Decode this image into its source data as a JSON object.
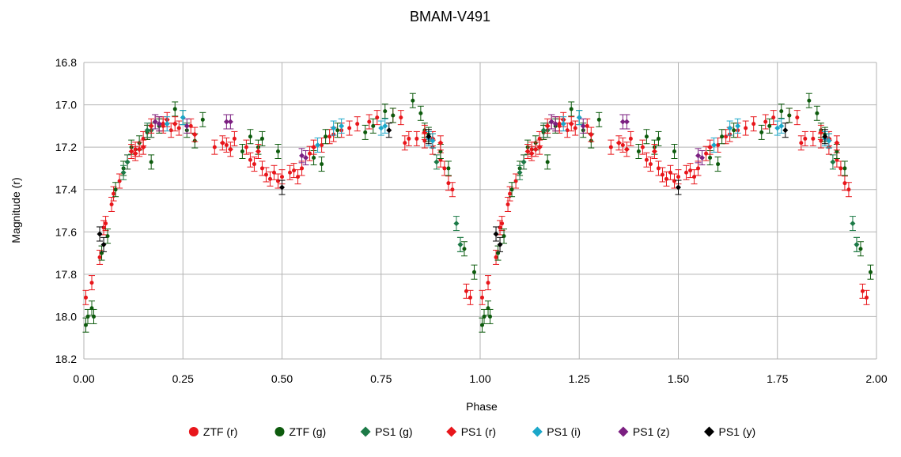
{
  "chart_data": {
    "type": "scatter",
    "title": "BMAM-V491",
    "xlabel": "Phase",
    "ylabel": "Magnitude (r)",
    "xlim": [
      0.0,
      2.0
    ],
    "ylim": [
      16.8,
      18.2
    ],
    "y_inverted": true,
    "grid": true,
    "legend_position": "bottom",
    "x_ticks": [
      "0.00",
      "0.25",
      "0.50",
      "0.75",
      "1.00",
      "1.25",
      "1.50",
      "1.75",
      "2.00"
    ],
    "x_tick_values": [
      0.0,
      0.25,
      0.5,
      0.75,
      1.0,
      1.25,
      1.5,
      1.75,
      2.0
    ],
    "y_ticks": [
      "16.8",
      "17.0",
      "17.2",
      "17.4",
      "17.6",
      "17.8",
      "18.0",
      "18.2"
    ],
    "y_tick_values": [
      16.8,
      17.0,
      17.2,
      17.4,
      17.6,
      17.8,
      18.0,
      18.2
    ],
    "series": [
      {
        "name": "ZTF (r)",
        "marker": "circle",
        "color": "#e8161b",
        "errcolor": "#e8161b",
        "points": [
          [
            0.005,
            17.91
          ],
          [
            0.02,
            17.84
          ],
          [
            0.04,
            17.72
          ],
          [
            0.05,
            17.58
          ],
          [
            0.055,
            17.56
          ],
          [
            0.07,
            17.47
          ],
          [
            0.075,
            17.42
          ],
          [
            0.09,
            17.36
          ],
          [
            0.11,
            17.27
          ],
          [
            0.13,
            17.21
          ],
          [
            0.15,
            17.16
          ],
          [
            0.16,
            17.13
          ],
          [
            0.17,
            17.12
          ],
          [
            0.19,
            17.09
          ],
          [
            0.2,
            17.1
          ],
          [
            0.22,
            17.12
          ],
          [
            0.24,
            17.11
          ],
          [
            0.27,
            17.1
          ],
          [
            0.33,
            17.2
          ],
          [
            0.36,
            17.19
          ],
          [
            0.38,
            17.16
          ],
          [
            0.41,
            17.2
          ],
          [
            0.42,
            17.26
          ],
          [
            0.43,
            17.28
          ],
          [
            0.45,
            17.3
          ],
          [
            0.46,
            17.33
          ],
          [
            0.47,
            17.35
          ],
          [
            0.48,
            17.32
          ],
          [
            0.49,
            17.36
          ],
          [
            0.5,
            17.34
          ],
          [
            0.52,
            17.32
          ],
          [
            0.53,
            17.31
          ],
          [
            0.54,
            17.34
          ],
          [
            0.55,
            17.3
          ],
          [
            0.57,
            17.23
          ],
          [
            0.6,
            17.19
          ],
          [
            0.62,
            17.15
          ],
          [
            0.63,
            17.14
          ],
          [
            0.65,
            17.12
          ],
          [
            0.67,
            17.11
          ],
          [
            0.69,
            17.09
          ],
          [
            0.72,
            17.08
          ],
          [
            0.74,
            17.06
          ],
          [
            0.78,
            17.05
          ],
          [
            0.8,
            17.06
          ],
          [
            0.81,
            17.18
          ],
          [
            0.82,
            17.16
          ],
          [
            0.84,
            17.16
          ],
          [
            0.86,
            17.17
          ],
          [
            0.88,
            17.2
          ],
          [
            0.9,
            17.26
          ],
          [
            0.91,
            17.3
          ],
          [
            0.92,
            17.37
          ],
          [
            0.93,
            17.4
          ],
          [
            0.965,
            17.88
          ],
          [
            0.975,
            17.91
          ]
        ]
      },
      {
        "name": "ZTF (g)",
        "marker": "circle",
        "color": "#0d5b0d",
        "errcolor": "#0d5b0d",
        "points": [
          [
            0.005,
            18.04
          ],
          [
            0.01,
            18.0
          ],
          [
            0.02,
            17.96
          ],
          [
            0.025,
            18.0
          ],
          [
            0.045,
            17.7
          ],
          [
            0.06,
            17.62
          ],
          [
            0.08,
            17.4
          ],
          [
            0.1,
            17.3
          ],
          [
            0.12,
            17.2
          ],
          [
            0.14,
            17.18
          ],
          [
            0.16,
            17.13
          ],
          [
            0.17,
            17.27
          ],
          [
            0.19,
            17.1
          ],
          [
            0.23,
            17.02
          ],
          [
            0.25,
            17.06
          ],
          [
            0.26,
            17.12
          ],
          [
            0.28,
            17.17
          ],
          [
            0.3,
            17.07
          ],
          [
            0.4,
            17.22
          ],
          [
            0.42,
            17.15
          ],
          [
            0.44,
            17.2
          ],
          [
            0.45,
            17.16
          ],
          [
            0.49,
            17.22
          ],
          [
            0.58,
            17.25
          ],
          [
            0.6,
            17.28
          ],
          [
            0.61,
            17.15
          ],
          [
            0.64,
            17.12
          ],
          [
            0.71,
            17.13
          ],
          [
            0.73,
            17.1
          ],
          [
            0.76,
            17.03
          ],
          [
            0.78,
            17.05
          ],
          [
            0.83,
            16.98
          ],
          [
            0.85,
            17.04
          ],
          [
            0.86,
            17.12
          ],
          [
            0.87,
            17.14
          ],
          [
            0.88,
            17.17
          ],
          [
            0.9,
            17.22
          ],
          [
            0.92,
            17.3
          ],
          [
            0.95,
            17.66
          ],
          [
            0.96,
            17.68
          ],
          [
            0.985,
            17.79
          ]
        ]
      },
      {
        "name": "PS1 (g)",
        "marker": "diamond",
        "color": "#1c7a47",
        "errcolor": "#1c7a47",
        "points": [
          [
            0.1,
            17.32
          ],
          [
            0.11,
            17.27
          ],
          [
            0.16,
            17.12
          ],
          [
            0.17,
            17.12
          ],
          [
            0.89,
            17.27
          ],
          [
            0.94,
            17.56
          ],
          [
            0.95,
            17.66
          ]
        ]
      },
      {
        "name": "PS1 (r)",
        "marker": "diamond",
        "color": "#e8161b",
        "errcolor": "#e8161b",
        "points": [
          [
            0.12,
            17.22
          ],
          [
            0.13,
            17.23
          ],
          [
            0.14,
            17.21
          ],
          [
            0.15,
            17.2
          ],
          [
            0.17,
            17.1
          ],
          [
            0.18,
            17.08
          ],
          [
            0.2,
            17.09
          ],
          [
            0.21,
            17.07
          ],
          [
            0.23,
            17.09
          ],
          [
            0.28,
            17.14
          ],
          [
            0.35,
            17.18
          ],
          [
            0.37,
            17.21
          ],
          [
            0.44,
            17.22
          ],
          [
            0.58,
            17.2
          ],
          [
            0.86,
            17.13
          ],
          [
            0.88,
            17.16
          ],
          [
            0.9,
            17.18
          ]
        ]
      },
      {
        "name": "PS1 (i)",
        "marker": "diamond",
        "color": "#1ba7c9",
        "errcolor": "#1ba7c9",
        "points": [
          [
            0.21,
            17.09
          ],
          [
            0.25,
            17.06
          ],
          [
            0.59,
            17.19
          ],
          [
            0.63,
            17.11
          ],
          [
            0.65,
            17.1
          ],
          [
            0.75,
            17.11
          ],
          [
            0.76,
            17.1
          ],
          [
            0.87,
            17.16
          ],
          [
            0.88,
            17.17
          ]
        ]
      },
      {
        "name": "PS1 (z)",
        "marker": "diamond",
        "color": "#7b1f81",
        "errcolor": "#7b1f81",
        "points": [
          [
            0.18,
            17.08
          ],
          [
            0.19,
            17.09
          ],
          [
            0.26,
            17.1
          ],
          [
            0.36,
            17.08
          ],
          [
            0.37,
            17.08
          ],
          [
            0.55,
            17.24
          ],
          [
            0.56,
            17.25
          ]
        ]
      },
      {
        "name": "PS1 (y)",
        "marker": "diamond",
        "color": "#000000",
        "errcolor": "#000000",
        "points": [
          [
            0.04,
            17.61
          ],
          [
            0.05,
            17.66
          ],
          [
            0.5,
            17.39
          ],
          [
            0.77,
            17.12
          ],
          [
            0.87,
            17.15
          ]
        ]
      }
    ]
  }
}
